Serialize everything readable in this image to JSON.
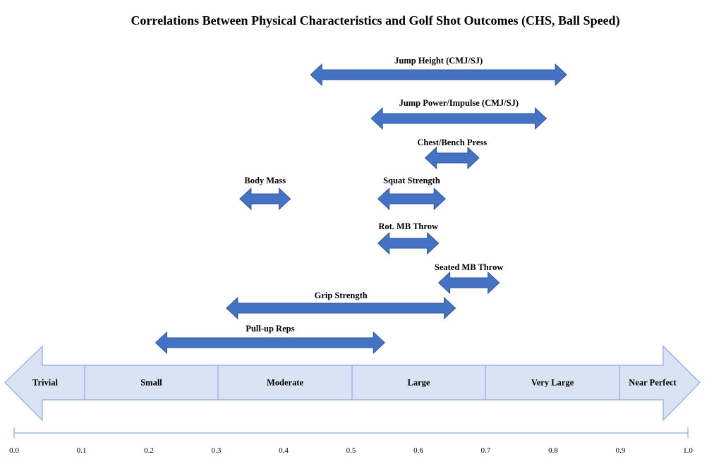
{
  "chart_data": {
    "type": "range",
    "title": "Correlations Between Physical Characteristics and Golf Shot Outcomes (CHS, Ball Speed)",
    "xlim": [
      0.0,
      1.0
    ],
    "ticks": [
      "0.0",
      "0.1",
      "0.2",
      "0.3",
      "0.4",
      "0.5",
      "0.6",
      "0.7",
      "0.8",
      "0.9",
      "1.0"
    ],
    "categories": [
      {
        "label": "Trivial",
        "from": 0.0,
        "to": 0.1
      },
      {
        "label": "Small",
        "from": 0.1,
        "to": 0.3
      },
      {
        "label": "Moderate",
        "from": 0.3,
        "to": 0.5
      },
      {
        "label": "Large",
        "from": 0.5,
        "to": 0.7
      },
      {
        "label": "Very Large",
        "from": 0.7,
        "to": 0.9
      },
      {
        "label": "Near Perfect",
        "from": 0.9,
        "to": 1.0
      }
    ],
    "series": [
      {
        "name": "Jump Height (CMJ/SJ)",
        "from": 0.44,
        "to": 0.82
      },
      {
        "name": "Jump Power/Impulse (CMJ/SJ)",
        "from": 0.53,
        "to": 0.79
      },
      {
        "name": "Chest/Bench Press",
        "from": 0.61,
        "to": 0.69
      },
      {
        "name": "Body Mass",
        "from": 0.335,
        "to": 0.41
      },
      {
        "name": "Squat Strength",
        "from": 0.54,
        "to": 0.64
      },
      {
        "name": "Rot. MB Throw",
        "from": 0.54,
        "to": 0.63
      },
      {
        "name": "Seated MB Throw",
        "from": 0.63,
        "to": 0.72
      },
      {
        "name": "Grip Strength",
        "from": 0.315,
        "to": 0.655
      },
      {
        "name": "Pull-up Reps",
        "from": 0.21,
        "to": 0.55
      }
    ],
    "colors": {
      "arrow": "#4472c4",
      "arrow_stroke": "#2f5597",
      "scale_fill": "#dae3f3",
      "scale_stroke": "#8faadc",
      "axis": "#8faadc"
    }
  }
}
